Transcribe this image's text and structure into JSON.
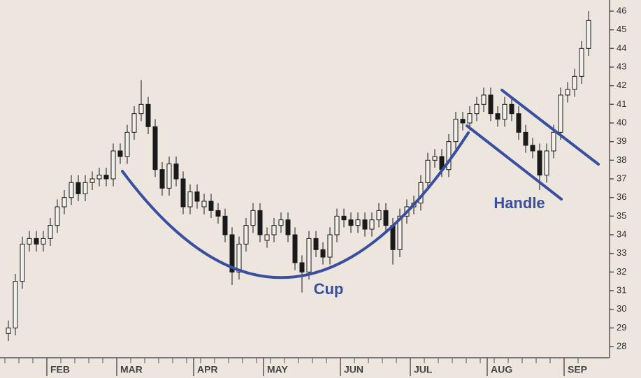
{
  "chart_data": {
    "type": "candlestick",
    "categories": [
      null,
      null,
      null,
      null,
      null,
      null,
      "FEB",
      null,
      null,
      null,
      null,
      null,
      null,
      null,
      null,
      null,
      "MAR",
      null,
      null,
      null,
      null,
      null,
      null,
      null,
      null,
      null,
      null,
      "APR",
      null,
      null,
      null,
      null,
      null,
      null,
      null,
      null,
      null,
      "MAY",
      null,
      null,
      null,
      null,
      null,
      null,
      null,
      null,
      null,
      null,
      "JUN",
      null,
      null,
      null,
      null,
      null,
      null,
      null,
      null,
      null,
      "JUL",
      null,
      null,
      null,
      null,
      null,
      null,
      null,
      null,
      null,
      null,
      "AUG",
      null,
      null,
      null,
      null,
      null,
      null,
      null,
      null,
      null,
      null,
      "SEP",
      null,
      null,
      null
    ],
    "open": [
      28.7,
      29,
      31.5,
      33.5,
      33.8,
      33.5,
      33.8,
      34.5,
      35.5,
      36,
      36.8,
      36.2,
      36.8,
      37,
      37.2,
      37,
      38.5,
      38.2,
      39.5,
      40.5,
      41,
      39.8,
      37.5,
      36.5,
      37.8,
      37,
      35.5,
      36.3,
      35.5,
      35.8,
      35.3,
      35,
      34,
      32,
      33.5,
      34.5,
      35.3,
      33.7,
      34,
      34.5,
      34.8,
      34,
      32.5,
      32,
      33.8,
      33.2,
      32.8,
      34,
      35,
      34.8,
      34.5,
      34.8,
      34.3,
      34.8,
      35.3,
      34.5,
      33.2,
      35,
      35.5,
      35.7,
      36.8,
      38,
      38.2,
      37.5,
      39,
      40.2,
      40,
      40.5,
      41,
      41.5,
      40.5,
      40.2,
      41,
      40.5,
      39.5,
      38.8,
      38.5,
      37.2,
      38.5,
      39.5,
      41.5,
      41.8,
      42.5,
      44
    ],
    "high": [
      29.4,
      31.9,
      33.9,
      34.2,
      34.2,
      34.2,
      34.9,
      35.9,
      36.4,
      37.2,
      37.2,
      37.2,
      37.4,
      37.6,
      37.6,
      38.9,
      38.9,
      39.9,
      40.9,
      42.3,
      41.4,
      40.2,
      37.9,
      38.2,
      38.2,
      37.4,
      36.7,
      36.7,
      36.2,
      36.2,
      35.7,
      35.4,
      34.4,
      33.9,
      34.9,
      35.7,
      35.7,
      34.4,
      34.9,
      35.2,
      35.2,
      34.4,
      32.9,
      34.2,
      34.2,
      33.6,
      34.4,
      35.4,
      35.4,
      35.2,
      35.2,
      35.2,
      35.2,
      35.7,
      35.7,
      34.9,
      35.4,
      35.9,
      36.1,
      37.2,
      38.4,
      38.6,
      38.6,
      39.4,
      40.6,
      40.6,
      40.9,
      41.4,
      41.9,
      41.9,
      40.9,
      41.4,
      41.4,
      40.9,
      39.9,
      39.2,
      38.9,
      38.9,
      39.9,
      41.9,
      42.2,
      42.9,
      44.4,
      46
    ],
    "low": [
      28.3,
      28.6,
      31.1,
      33.1,
      33.1,
      33.1,
      33.4,
      34.1,
      35.1,
      35.6,
      35.8,
      35.8,
      36.4,
      36.6,
      36.6,
      36.6,
      37.8,
      37.8,
      39.1,
      40.1,
      39.4,
      37.1,
      36.1,
      36.1,
      36.6,
      35.1,
      35.1,
      35.4,
      35.1,
      34.9,
      34.6,
      33.6,
      31.3,
      31.6,
      33.1,
      34.1,
      33.6,
      33.3,
      33.6,
      34.1,
      33.6,
      32.1,
      30.9,
      31.6,
      32.8,
      32.4,
      32.4,
      33.6,
      34.4,
      34.1,
      34.1,
      33.9,
      33.9,
      34.4,
      34.1,
      32.4,
      32.8,
      34.6,
      35.1,
      35.3,
      36.4,
      37.6,
      37.1,
      37.1,
      38.6,
      39.6,
      39.6,
      40.1,
      40.6,
      40.1,
      39.8,
      39.8,
      40.1,
      39.1,
      38.4,
      38.1,
      36.4,
      36.8,
      38.1,
      39.1,
      41.1,
      41.4,
      42.1,
      43.6
    ],
    "close": [
      29,
      31.5,
      33.5,
      33.8,
      33.5,
      33.8,
      34.5,
      35.5,
      36,
      36.8,
      36.2,
      36.8,
      37,
      37.2,
      37,
      38.5,
      38.2,
      39.5,
      40.5,
      41,
      39.8,
      37.5,
      36.5,
      37.8,
      37,
      35.5,
      36.3,
      35.8,
      35.8,
      35.3,
      35,
      34,
      32,
      33.5,
      34.5,
      35.3,
      34,
      34,
      34.5,
      34.8,
      34,
      32.5,
      32,
      33.8,
      33.2,
      32.8,
      34,
      35,
      34.8,
      34.5,
      34.8,
      34.3,
      34.8,
      35.3,
      34.5,
      33.2,
      35,
      35.5,
      35.7,
      36.8,
      38,
      38.2,
      37.5,
      39,
      40.2,
      40,
      40.5,
      41,
      41.5,
      40.5,
      40.2,
      41,
      40.5,
      39.5,
      38.8,
      38.5,
      37.2,
      38.5,
      39.5,
      41.5,
      41.8,
      42.5,
      44,
      45.5
    ],
    "up_color": "#f4f1ec",
    "down_color": "#1a1a1a",
    "ylim": [
      27.4,
      46.6
    ],
    "yticks": [
      28,
      29,
      30,
      31,
      32,
      33,
      34,
      35,
      36,
      37,
      38,
      39,
      40,
      41,
      42,
      43,
      44,
      45,
      46
    ],
    "annotations": [
      "Cup",
      "Handle"
    ]
  }
}
